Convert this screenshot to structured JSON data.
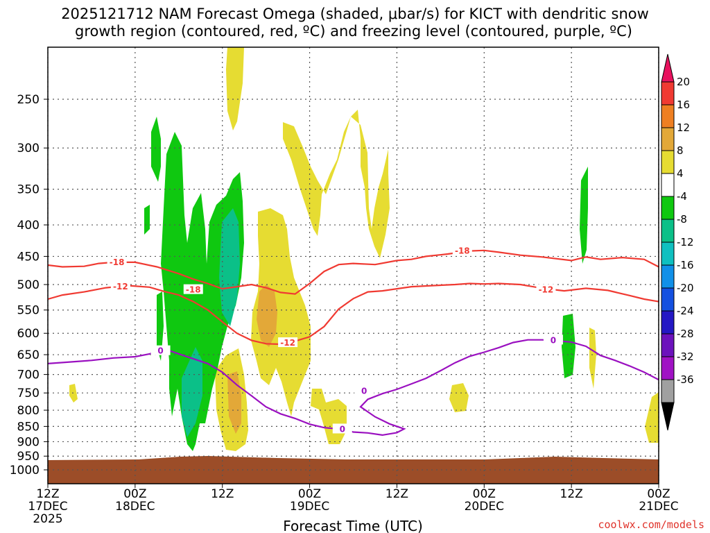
{
  "header": {
    "title_line1": "2025121712 NAM Forecast Omega (shaded, μbar/s) for KICT with dendritic snow",
    "title_line2": "growth region (contoured, red, ºC) and freezing level (contoured, purple, ºC)"
  },
  "footer": {
    "xlabel": "Forecast Time (UTC)",
    "credit": "coolwx.com/models"
  },
  "chart_data": {
    "type": "heatmap",
    "title": "2025121712 NAM Forecast Omega (shaded, μbar/s) for KICT with dendritic snow growth region (contoured, red, ºC) and freezing level (contoured, purple, ºC)",
    "xlabel": "Forecast Time (UTC)",
    "ylabel": "",
    "x_range_hours": [
      0,
      84
    ],
    "y_range_hPa": [
      1050,
      200
    ],
    "x_ticks": [
      {
        "h": 0,
        "line1": "12Z",
        "line2": "17DEC",
        "line3": "2025"
      },
      {
        "h": 12,
        "line1": "00Z",
        "line2": "18DEC",
        "line3": ""
      },
      {
        "h": 24,
        "line1": "12Z",
        "line2": "",
        "line3": ""
      },
      {
        "h": 36,
        "line1": "00Z",
        "line2": "19DEC",
        "line3": ""
      },
      {
        "h": 48,
        "line1": "12Z",
        "line2": "",
        "line3": ""
      },
      {
        "h": 60,
        "line1": "00Z",
        "line2": "20DEC",
        "line3": ""
      },
      {
        "h": 72,
        "line1": "12Z",
        "line2": "",
        "line3": ""
      },
      {
        "h": 84,
        "line1": "00Z",
        "line2": "21DEC",
        "line3": ""
      }
    ],
    "y_ticks": [
      250,
      300,
      350,
      400,
      450,
      500,
      550,
      600,
      650,
      700,
      750,
      800,
      850,
      900,
      950,
      1000
    ],
    "grid": true,
    "colorbar": {
      "labels": [
        "20",
        "16",
        "12",
        "8",
        "4",
        "-4",
        "-8",
        "-12",
        "-16",
        "-20",
        "-24",
        "-28",
        "-32",
        "-36"
      ],
      "colors": [
        "#e8125e",
        "#f03a32",
        "#ee7f22",
        "#e3a838",
        "#e6dc32",
        "#ffffff",
        "#0fc810",
        "#0bc088",
        "#0fc0c0",
        "#1190e8",
        "#1450e0",
        "#2418c4",
        "#6c12bc",
        "#a012c4",
        "#a0a0a0",
        "#000000"
      ]
    },
    "series": [
      {
        "name": "-18",
        "color": "#f03a32",
        "points": [
          [
            0,
            465
          ],
          [
            2,
            468
          ],
          [
            5,
            467
          ],
          [
            7,
            462
          ],
          [
            9,
            460
          ],
          [
            12,
            460
          ],
          [
            15,
            468
          ],
          [
            18,
            480
          ],
          [
            20,
            490
          ],
          [
            22,
            498
          ],
          [
            24,
            508
          ],
          [
            26,
            504
          ],
          [
            28,
            500
          ],
          [
            30,
            506
          ],
          [
            32,
            515
          ],
          [
            34,
            518
          ],
          [
            36,
            498
          ],
          [
            38,
            476
          ],
          [
            40,
            464
          ],
          [
            42,
            462
          ],
          [
            45,
            464
          ],
          [
            48,
            457
          ],
          [
            50,
            455
          ],
          [
            52,
            450
          ],
          [
            55,
            446
          ],
          [
            58,
            441
          ],
          [
            60,
            440
          ],
          [
            62,
            443
          ],
          [
            65,
            448
          ],
          [
            68,
            451
          ],
          [
            72,
            457
          ],
          [
            74,
            451
          ],
          [
            76,
            455
          ],
          [
            79,
            452
          ],
          [
            82,
            455
          ],
          [
            84,
            468
          ]
        ],
        "labels": [
          {
            "x": 9.5,
            "y": 460
          },
          {
            "x": 20.0,
            "y": 510
          },
          {
            "x": 57.0,
            "y": 441
          }
        ]
      },
      {
        "name": "-12",
        "color": "#f03a32",
        "points": [
          [
            0,
            528
          ],
          [
            2,
            520
          ],
          [
            5,
            514
          ],
          [
            8,
            506
          ],
          [
            11,
            502
          ],
          [
            14,
            505
          ],
          [
            16,
            513
          ],
          [
            18,
            520
          ],
          [
            20,
            533
          ],
          [
            22,
            550
          ],
          [
            24,
            575
          ],
          [
            26,
            600
          ],
          [
            28,
            616
          ],
          [
            30,
            624
          ],
          [
            32,
            625
          ],
          [
            34,
            618
          ],
          [
            36,
            608
          ],
          [
            38,
            585
          ],
          [
            40,
            548
          ],
          [
            42,
            527
          ],
          [
            44,
            514
          ],
          [
            46,
            512
          ],
          [
            48,
            508
          ],
          [
            50,
            504
          ],
          [
            53,
            502
          ],
          [
            56,
            500
          ],
          [
            58,
            498
          ],
          [
            60,
            499
          ],
          [
            62,
            498
          ],
          [
            65,
            500
          ],
          [
            68,
            507
          ],
          [
            71,
            512
          ],
          [
            74,
            507
          ],
          [
            77,
            511
          ],
          [
            80,
            521
          ],
          [
            82,
            528
          ],
          [
            84,
            533
          ]
        ],
        "labels": [
          {
            "x": 10.0,
            "y": 504
          },
          {
            "x": 33.0,
            "y": 622
          },
          {
            "x": 68.5,
            "y": 510
          }
        ]
      },
      {
        "name": "0",
        "color": "#9a10c0",
        "points": [
          [
            0,
            672
          ],
          [
            3,
            668
          ],
          [
            6,
            664
          ],
          [
            9,
            658
          ],
          [
            12,
            655
          ],
          [
            14,
            648
          ],
          [
            16,
            636
          ],
          [
            18,
            648
          ],
          [
            20,
            660
          ],
          [
            22,
            672
          ],
          [
            24,
            694
          ],
          [
            26,
            728
          ],
          [
            28,
            758
          ],
          [
            30,
            790
          ],
          [
            32,
            811
          ],
          [
            34,
            825
          ],
          [
            36,
            843
          ],
          [
            38,
            854
          ],
          [
            40,
            858
          ],
          [
            42,
            868
          ],
          [
            44,
            871
          ],
          [
            46,
            878
          ],
          [
            48,
            870
          ],
          [
            49,
            858
          ],
          [
            47,
            842
          ],
          [
            45,
            820
          ],
          [
            43,
            790
          ],
          [
            44,
            768
          ],
          [
            46,
            752
          ],
          [
            48,
            740
          ],
          [
            50,
            725
          ],
          [
            52,
            710
          ],
          [
            54,
            690
          ],
          [
            56,
            670
          ],
          [
            58,
            654
          ],
          [
            60,
            644
          ],
          [
            62,
            633
          ],
          [
            64,
            621
          ],
          [
            66,
            615
          ],
          [
            68,
            615
          ],
          [
            70,
            617
          ],
          [
            72,
            620
          ],
          [
            74,
            630
          ],
          [
            76,
            652
          ],
          [
            78,
            664
          ],
          [
            80,
            678
          ],
          [
            82,
            694
          ],
          [
            84,
            714
          ]
        ],
        "labels": [
          {
            "x": 15.5,
            "y": 641
          },
          {
            "x": 40.5,
            "y": 859
          },
          {
            "x": 43.5,
            "y": 745
          },
          {
            "x": 69.5,
            "y": 616
          }
        ]
      }
    ],
    "annotations": [
      {
        "text": "2025",
        "x": 0,
        "y": "below x-axis"
      }
    ]
  }
}
